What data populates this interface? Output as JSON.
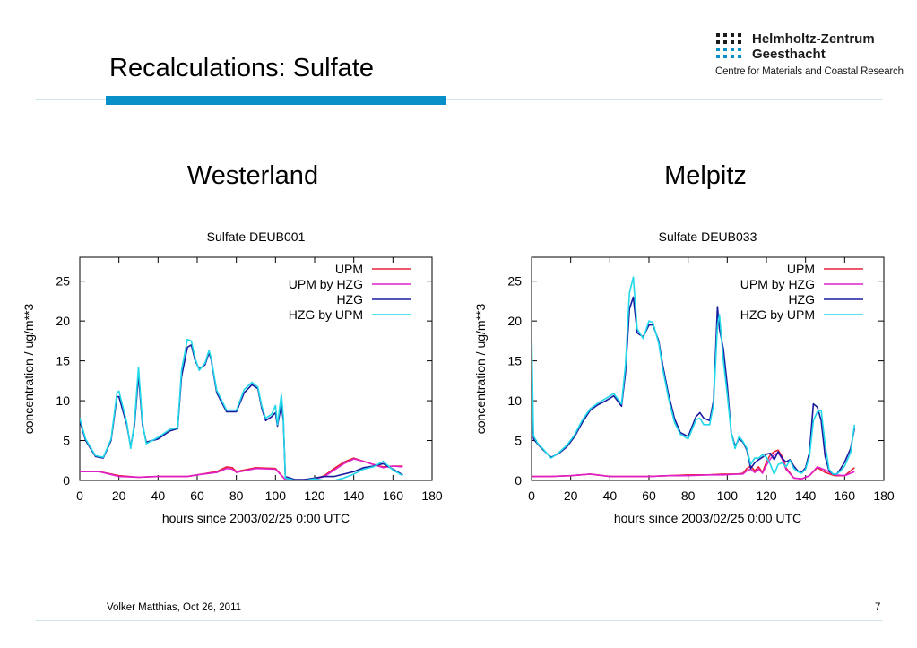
{
  "slide": {
    "title": "Recalculations: Sulfate",
    "footer_left": "Volker Matthias, Oct 26, 2011",
    "page_number": "7"
  },
  "logo": {
    "name_line1": "Helmholtz-Zentrum",
    "name_line2": "Geesthacht",
    "subtitle": "Centre for Materials and Coastal Research"
  },
  "sites": [
    "Westerland",
    "Melpitz"
  ],
  "colors": {
    "accent_bar": "#0a90c8",
    "UPM": "#e8203a",
    "UPM by HZG": "#e020c8",
    "HZG": "#1a1aa0",
    "HZG by UPM": "#20d8e8"
  },
  "chart_data": [
    {
      "type": "line",
      "title": "Sulfate DEUB001",
      "xlabel": "hours since 2003/02/25 0:00 UTC",
      "ylabel": "concentration / ug/m**3",
      "xlim": [
        0,
        180
      ],
      "ylim": [
        0,
        28
      ],
      "xticks": [
        0,
        20,
        40,
        60,
        80,
        100,
        120,
        140,
        160,
        180
      ],
      "yticks": [
        0,
        5,
        10,
        15,
        20,
        25
      ],
      "legend_position": "top-right",
      "grid": false,
      "series": [
        {
          "name": "UPM",
          "color": "#e8203a",
          "x": [
            0,
            10,
            20,
            30,
            40,
            50,
            55,
            60,
            70,
            75,
            78,
            80,
            90,
            100,
            105,
            110,
            120,
            125,
            130,
            135,
            140,
            145,
            150,
            155,
            160,
            165
          ],
          "y": [
            1.1,
            1.1,
            0.6,
            0.4,
            0.5,
            0.5,
            0.5,
            0.7,
            1.1,
            1.7,
            1.6,
            1.1,
            1.6,
            1.5,
            0.1,
            0.0,
            0.2,
            0.6,
            1.5,
            2.3,
            2.8,
            2.4,
            2.0,
            1.7,
            1.8,
            1.8
          ]
        },
        {
          "name": "UPM by HZG",
          "color": "#e020c8",
          "x": [
            0,
            10,
            20,
            30,
            40,
            50,
            55,
            60,
            70,
            75,
            78,
            80,
            90,
            100,
            105,
            110,
            120,
            125,
            130,
            135,
            140,
            145,
            150,
            155,
            160,
            165
          ],
          "y": [
            1.1,
            1.1,
            0.5,
            0.4,
            0.5,
            0.5,
            0.5,
            0.7,
            1.0,
            1.5,
            1.4,
            1.0,
            1.5,
            1.4,
            0.1,
            0.0,
            0.2,
            0.5,
            1.3,
            2.1,
            2.7,
            2.4,
            2.0,
            1.6,
            1.8,
            1.7
          ]
        },
        {
          "name": "HZG",
          "color": "#1a1aa0",
          "x": [
            0,
            3,
            8,
            12,
            16,
            19,
            20,
            24,
            26,
            28,
            30,
            32,
            34,
            40,
            46,
            50,
            52,
            55,
            57,
            59,
            61,
            64,
            66,
            67,
            70,
            75,
            80,
            84,
            88,
            91,
            93,
            95,
            98,
            100,
            101,
            103,
            104,
            105,
            110,
            115,
            120,
            125,
            130,
            135,
            140,
            145,
            150,
            155,
            160,
            165
          ],
          "y": [
            7.5,
            5.0,
            3.0,
            2.8,
            5.0,
            10.5,
            10.5,
            7.0,
            4.2,
            7.0,
            13.2,
            7.0,
            4.8,
            5.2,
            6.2,
            6.5,
            13.0,
            16.7,
            17.0,
            15.0,
            14.0,
            14.5,
            16.0,
            15.3,
            11.0,
            8.6,
            8.6,
            11.0,
            12.0,
            11.5,
            9.0,
            7.5,
            8.0,
            8.5,
            6.8,
            9.5,
            7.5,
            0.5,
            0.1,
            0.1,
            0.3,
            0.5,
            0.5,
            0.8,
            1.1,
            1.6,
            1.8,
            2.1,
            1.4,
            0.7
          ]
        },
        {
          "name": "HZG by UPM",
          "color": "#20d8e8",
          "x": [
            0,
            3,
            8,
            12,
            16,
            19,
            20,
            24,
            26,
            28,
            30,
            32,
            34,
            40,
            46,
            50,
            52,
            55,
            57,
            59,
            61,
            64,
            66,
            67,
            70,
            75,
            80,
            84,
            88,
            91,
            93,
            95,
            98,
            100,
            101,
            103,
            104,
            105,
            110,
            115,
            120,
            125,
            130,
            135,
            140,
            145,
            150,
            155,
            160,
            165
          ],
          "y": [
            7.8,
            5.2,
            3.1,
            2.9,
            5.2,
            11.0,
            11.2,
            7.3,
            4.0,
            7.4,
            14.2,
            7.3,
            4.6,
            5.4,
            6.4,
            6.6,
            13.8,
            17.7,
            17.5,
            15.3,
            13.8,
            14.7,
            16.3,
            15.5,
            11.3,
            8.8,
            8.8,
            11.4,
            12.3,
            11.7,
            9.3,
            7.8,
            8.3,
            9.4,
            7.0,
            10.8,
            8.0,
            0.3,
            0.0,
            0.0,
            0.2,
            0.0,
            0.0,
            0.3,
            0.8,
            1.4,
            1.7,
            2.4,
            1.3,
            0.6
          ]
        }
      ]
    },
    {
      "type": "line",
      "title": "Sulfate DEUB033",
      "xlabel": "hours since 2003/02/25 0:00 UTC",
      "ylabel": "concentration / ug/m**3",
      "xlim": [
        0,
        180
      ],
      "ylim": [
        0,
        28
      ],
      "xticks": [
        0,
        20,
        40,
        60,
        80,
        100,
        120,
        140,
        160,
        180
      ],
      "yticks": [
        0,
        5,
        10,
        15,
        20,
        25
      ],
      "legend_position": "top-right",
      "grid": false,
      "series": [
        {
          "name": "UPM",
          "color": "#e8203a",
          "x": [
            0,
            10,
            20,
            30,
            40,
            50,
            60,
            70,
            80,
            90,
            98,
            105,
            108,
            110,
            112,
            114,
            116,
            118,
            120,
            122,
            124,
            126,
            128,
            130,
            134,
            138,
            142,
            146,
            150,
            155,
            160,
            165
          ],
          "y": [
            0.5,
            0.5,
            0.6,
            0.8,
            0.5,
            0.5,
            0.5,
            0.6,
            0.7,
            0.7,
            0.8,
            0.8,
            0.9,
            1.5,
            1.8,
            1.2,
            1.7,
            1.0,
            2.3,
            3.2,
            3.6,
            3.8,
            3.0,
            1.6,
            0.3,
            0.2,
            0.6,
            1.6,
            1.0,
            0.6,
            0.6,
            1.6
          ]
        },
        {
          "name": "UPM by HZG",
          "color": "#e020c8",
          "x": [
            0,
            10,
            20,
            30,
            40,
            50,
            60,
            70,
            80,
            90,
            98,
            105,
            108,
            110,
            112,
            114,
            116,
            118,
            120,
            122,
            124,
            126,
            128,
            130,
            134,
            138,
            142,
            146,
            150,
            155,
            160,
            165
          ],
          "y": [
            0.5,
            0.5,
            0.6,
            0.8,
            0.5,
            0.5,
            0.5,
            0.6,
            0.6,
            0.7,
            0.7,
            0.8,
            0.8,
            1.2,
            1.4,
            1.0,
            1.4,
            0.9,
            1.9,
            2.7,
            3.2,
            3.5,
            2.7,
            1.4,
            0.3,
            0.2,
            0.6,
            1.7,
            1.3,
            0.7,
            0.6,
            1.1
          ]
        },
        {
          "name": "HZG",
          "color": "#1a1aa0",
          "x": [
            0,
            1,
            3,
            6,
            10,
            14,
            18,
            22,
            26,
            30,
            34,
            38,
            42,
            46,
            48,
            50,
            52,
            54,
            57,
            60,
            62,
            65,
            67,
            70,
            73,
            76,
            80,
            84,
            86,
            88,
            91,
            93,
            95,
            96,
            98,
            100,
            102,
            104,
            106,
            108,
            110,
            112,
            114,
            116,
            118,
            120,
            122,
            124,
            126,
            128,
            130,
            132,
            134,
            136,
            138,
            140,
            142,
            144,
            146,
            148,
            150,
            152,
            154,
            156,
            158,
            160,
            163,
            165
          ],
          "y": [
            9.8,
            5.2,
            4.6,
            3.8,
            2.9,
            3.4,
            4.2,
            5.5,
            7.3,
            8.8,
            9.5,
            10.0,
            10.6,
            9.3,
            13.5,
            21.5,
            23.0,
            18.5,
            18.0,
            19.5,
            19.5,
            17.5,
            14.5,
            10.8,
            7.8,
            6.0,
            5.5,
            8.0,
            8.5,
            7.8,
            7.5,
            10.0,
            21.8,
            19.0,
            16.5,
            12.0,
            6.0,
            4.3,
            5.2,
            4.8,
            3.8,
            1.5,
            2.2,
            2.6,
            2.9,
            3.3,
            3.4,
            2.6,
            3.6,
            2.8,
            2.3,
            2.6,
            1.8,
            1.2,
            1.0,
            1.6,
            3.5,
            9.6,
            9.2,
            7.5,
            3.0,
            1.2,
            0.8,
            0.8,
            1.5,
            2.3,
            4.0,
            6.5
          ]
        },
        {
          "name": "HZG by UPM",
          "color": "#20d8e8",
          "x": [
            0,
            1,
            3,
            6,
            10,
            14,
            18,
            22,
            26,
            30,
            34,
            38,
            42,
            46,
            48,
            50,
            52,
            54,
            57,
            60,
            62,
            65,
            67,
            70,
            73,
            76,
            80,
            84,
            86,
            88,
            91,
            93,
            95,
            96,
            98,
            100,
            102,
            104,
            106,
            108,
            110,
            112,
            114,
            116,
            118,
            120,
            122,
            124,
            126,
            128,
            130,
            132,
            134,
            136,
            138,
            140,
            142,
            144,
            146,
            148,
            150,
            152,
            154,
            156,
            158,
            160,
            163,
            165
          ],
          "y": [
            19.0,
            5.6,
            4.7,
            3.9,
            2.8,
            3.5,
            4.4,
            5.7,
            7.6,
            9.0,
            9.7,
            10.3,
            10.9,
            9.6,
            14.5,
            23.5,
            25.5,
            19.0,
            17.8,
            20.0,
            19.8,
            17.2,
            14.0,
            10.3,
            7.3,
            5.8,
            5.2,
            7.6,
            7.8,
            7.0,
            7.0,
            9.5,
            19.5,
            20.8,
            15.0,
            10.8,
            6.0,
            4.0,
            5.5,
            4.9,
            4.0,
            2.0,
            2.8,
            2.8,
            3.2,
            2.9,
            2.0,
            0.8,
            2.0,
            2.2,
            1.7,
            2.5,
            1.5,
            1.1,
            0.9,
            1.4,
            3.0,
            7.5,
            8.6,
            8.8,
            4.5,
            1.4,
            0.8,
            0.8,
            1.2,
            1.8,
            3.5,
            7.0
          ]
        }
      ]
    }
  ]
}
